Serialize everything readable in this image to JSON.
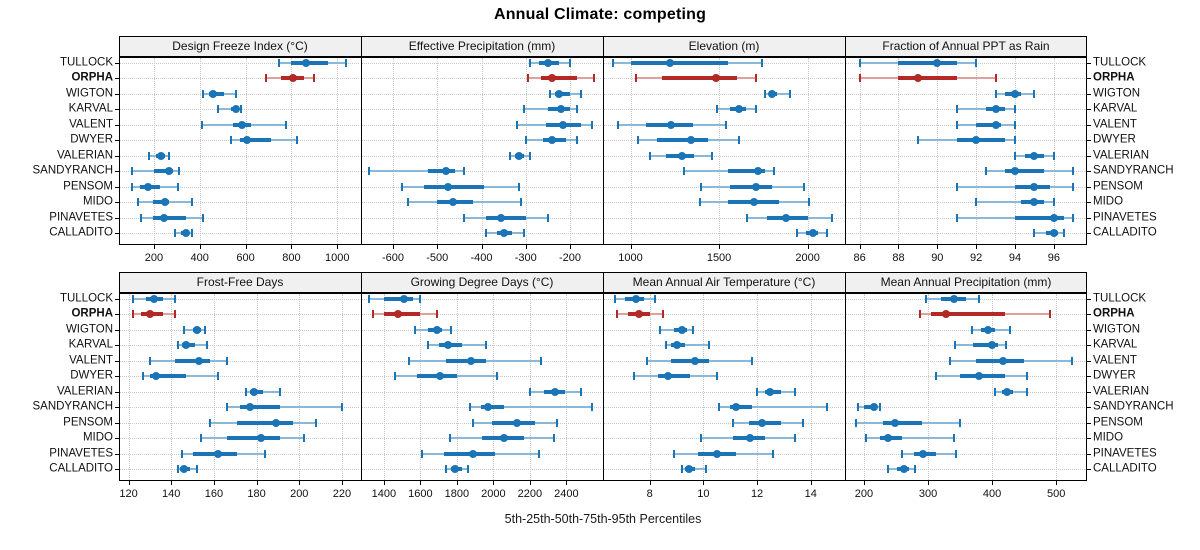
{
  "title": "Annual Climate: competing",
  "caption": "5th-25th-50th-75th-95th Percentiles",
  "highlight_site": "ORPHA",
  "colors": {
    "series": "#1b74b6",
    "series_light": "#8ab8da",
    "highlight": "#b22926",
    "highlight_light": "#dda29f",
    "strip_bg": "#f0f0f0",
    "grid": "#c9c9c9",
    "border": "#000000"
  },
  "chart_data": {
    "type": "scatter",
    "subtype": "percentile-interval-dotplot",
    "percentiles": [
      5,
      25,
      50,
      75,
      95
    ],
    "legend_note": "dot = median, thick bar = 25th-75th, thin line with caps = 5th-95th",
    "categories": [
      "TULLOCK",
      "ORPHA",
      "WIGTON",
      "KARVAL",
      "VALENT",
      "DWYER",
      "VALERIAN",
      "SANDYRANCH",
      "PENSOM",
      "MIDO",
      "PINAVETES",
      "CALLADITO"
    ],
    "grid": true,
    "panels": [
      {
        "title": "Design Freeze Index (°C)",
        "xlim": [
          52,
          1095
        ],
        "xticks": [
          200,
          400,
          600,
          800,
          1000
        ],
        "values": [
          [
            745,
            800,
            865,
            960,
            1040
          ],
          [
            690,
            755,
            805,
            855,
            900
          ],
          [
            415,
            440,
            460,
            505,
            560
          ],
          [
            480,
            535,
            560,
            570,
            580
          ],
          [
            410,
            545,
            585,
            625,
            775
          ],
          [
            535,
            575,
            605,
            710,
            825
          ],
          [
            180,
            210,
            230,
            250,
            265
          ],
          [
            105,
            200,
            265,
            285,
            310
          ],
          [
            105,
            140,
            175,
            225,
            305
          ],
          [
            130,
            195,
            250,
            265,
            365
          ],
          [
            145,
            195,
            245,
            340,
            415
          ],
          [
            290,
            320,
            340,
            355,
            365
          ]
        ]
      },
      {
        "title": "Effective Precipitation (mm)",
        "xlim": [
          -670,
          -130
        ],
        "xticks": [
          -600,
          -500,
          -400,
          -300,
          -200
        ],
        "values": [
          [
            -290,
            -270,
            -250,
            -225,
            -200
          ],
          [
            -295,
            -265,
            -240,
            -185,
            -145
          ],
          [
            -245,
            -235,
            -225,
            -200,
            -175
          ],
          [
            -305,
            -250,
            -220,
            -200,
            -185
          ],
          [
            -320,
            -255,
            -215,
            -175,
            -150
          ],
          [
            -300,
            -260,
            -240,
            -210,
            -185
          ],
          [
            -335,
            -325,
            -315,
            -305,
            -290
          ],
          [
            -655,
            -520,
            -480,
            -460,
            -440
          ],
          [
            -580,
            -530,
            -475,
            -395,
            -315
          ],
          [
            -565,
            -500,
            -465,
            -420,
            -310
          ],
          [
            -440,
            -390,
            -355,
            -300,
            -250
          ],
          [
            -390,
            -365,
            -350,
            -330,
            -305
          ]
        ]
      },
      {
        "title": "Elevation (m)",
        "xlim": [
          850,
          2200
        ],
        "xticks": [
          1000,
          1500,
          2000
        ],
        "values": [
          [
            900,
            1000,
            1220,
            1550,
            1740
          ],
          [
            1030,
            1180,
            1480,
            1600,
            1710
          ],
          [
            1760,
            1780,
            1800,
            1830,
            1900
          ],
          [
            1490,
            1560,
            1610,
            1650,
            1710
          ],
          [
            930,
            1090,
            1230,
            1350,
            1540
          ],
          [
            1040,
            1150,
            1340,
            1440,
            1610
          ],
          [
            1110,
            1200,
            1290,
            1360,
            1460
          ],
          [
            1300,
            1550,
            1720,
            1760,
            1810
          ],
          [
            1400,
            1560,
            1710,
            1800,
            1980
          ],
          [
            1390,
            1550,
            1700,
            1840,
            2010
          ],
          [
            1660,
            1770,
            1880,
            2000,
            2140
          ],
          [
            1940,
            1990,
            2030,
            2060,
            2110
          ]
        ]
      },
      {
        "title": "Fraction of Annual PPT as Rain",
        "xlim": [
          85.3,
          97.6
        ],
        "xticks": [
          86,
          88,
          90,
          92,
          94,
          96
        ],
        "values": [
          [
            86,
            88,
            90,
            91,
            92
          ],
          [
            86,
            88,
            89,
            91,
            93
          ],
          [
            93,
            93.5,
            94,
            94.3,
            95
          ],
          [
            91,
            92.5,
            93,
            93.5,
            94
          ],
          [
            91,
            92,
            93,
            93.3,
            94
          ],
          [
            89,
            91,
            92,
            93.5,
            94
          ],
          [
            94,
            94.5,
            95,
            95.5,
            96
          ],
          [
            92.5,
            93.5,
            94,
            95.5,
            97
          ],
          [
            91,
            94,
            95,
            95.8,
            97
          ],
          [
            92,
            94.3,
            95,
            95.5,
            96
          ],
          [
            91,
            94,
            96,
            96.5,
            97
          ],
          [
            95,
            95.6,
            96,
            96.2,
            96.5
          ]
        ]
      },
      {
        "title": "Frost-Free Days",
        "xlim": [
          116,
          228
        ],
        "xticks": [
          120,
          140,
          160,
          180,
          200,
          220
        ],
        "values": [
          [
            122,
            128,
            132,
            136,
            142
          ],
          [
            122,
            126,
            130,
            136,
            142
          ],
          [
            146,
            150,
            152,
            154,
            156
          ],
          [
            143,
            145,
            147,
            151,
            157
          ],
          [
            130,
            142,
            153,
            158,
            166
          ],
          [
            127,
            130,
            133,
            147,
            162
          ],
          [
            175,
            177,
            179,
            183,
            191
          ],
          [
            166,
            172,
            177,
            191,
            220
          ],
          [
            158,
            171,
            189,
            197,
            208
          ],
          [
            154,
            166,
            182,
            191,
            202
          ],
          [
            145,
            150,
            162,
            171,
            184
          ],
          [
            143,
            144,
            146,
            149,
            152
          ]
        ]
      },
      {
        "title": "Growing Degree Days (°C)",
        "xlim": [
          1280,
          2590
        ],
        "xticks": [
          1400,
          1600,
          1800,
          2000,
          2200,
          2400
        ],
        "values": [
          [
            1320,
            1400,
            1510,
            1560,
            1600
          ],
          [
            1340,
            1400,
            1480,
            1600,
            1690
          ],
          [
            1570,
            1640,
            1690,
            1720,
            1770
          ],
          [
            1640,
            1700,
            1750,
            1830,
            1960
          ],
          [
            1540,
            1740,
            1880,
            1960,
            2260
          ],
          [
            1460,
            1580,
            1710,
            1800,
            2020
          ],
          [
            2200,
            2280,
            2340,
            2390,
            2480
          ],
          [
            1870,
            1930,
            1970,
            2060,
            2540
          ],
          [
            1890,
            1990,
            2130,
            2230,
            2350
          ],
          [
            1760,
            1940,
            2060,
            2170,
            2330
          ],
          [
            1610,
            1730,
            1890,
            2010,
            2250
          ],
          [
            1740,
            1770,
            1790,
            1830,
            1860
          ]
        ]
      },
      {
        "title": "Mean Annual Air Temperature (°C)",
        "xlim": [
          6.3,
          15.2
        ],
        "xticks": [
          8,
          10,
          12,
          14
        ],
        "values": [
          [
            6.7,
            7.1,
            7.5,
            7.8,
            8.2
          ],
          [
            6.8,
            7.2,
            7.6,
            8.0,
            8.5
          ],
          [
            8.4,
            8.9,
            9.2,
            9.4,
            9.6
          ],
          [
            8.6,
            8.8,
            9.0,
            9.3,
            10.2
          ],
          [
            7.9,
            8.8,
            9.7,
            10.2,
            11.8
          ],
          [
            7.4,
            8.3,
            8.7,
            9.5,
            10.5
          ],
          [
            12.0,
            12.3,
            12.5,
            12.9,
            13.4
          ],
          [
            10.6,
            11.0,
            11.2,
            11.8,
            14.6
          ],
          [
            11.1,
            11.7,
            12.2,
            12.9,
            13.7
          ],
          [
            9.9,
            11.1,
            11.75,
            12.3,
            13.4
          ],
          [
            8.9,
            9.8,
            10.5,
            11.2,
            12.6
          ],
          [
            9.2,
            9.3,
            9.45,
            9.7,
            10.1
          ]
        ]
      },
      {
        "title": "Mean Annual Precipitation (mm)",
        "xlim": [
          172,
          545
        ],
        "xticks": [
          200,
          300,
          400,
          500
        ],
        "values": [
          [
            297,
            320,
            340,
            360,
            380
          ],
          [
            288,
            305,
            328,
            420,
            490
          ],
          [
            368,
            382,
            393,
            405,
            428
          ],
          [
            342,
            370,
            400,
            410,
            422
          ],
          [
            335,
            375,
            417,
            450,
            525
          ],
          [
            312,
            350,
            380,
            420,
            455
          ],
          [
            405,
            415,
            423,
            432,
            455
          ],
          [
            190,
            200,
            215,
            220,
            225
          ],
          [
            188,
            230,
            248,
            290,
            350
          ],
          [
            203,
            225,
            237,
            260,
            340
          ],
          [
            260,
            278,
            292,
            312,
            343
          ],
          [
            238,
            252,
            262,
            270,
            280
          ]
        ]
      }
    ]
  }
}
